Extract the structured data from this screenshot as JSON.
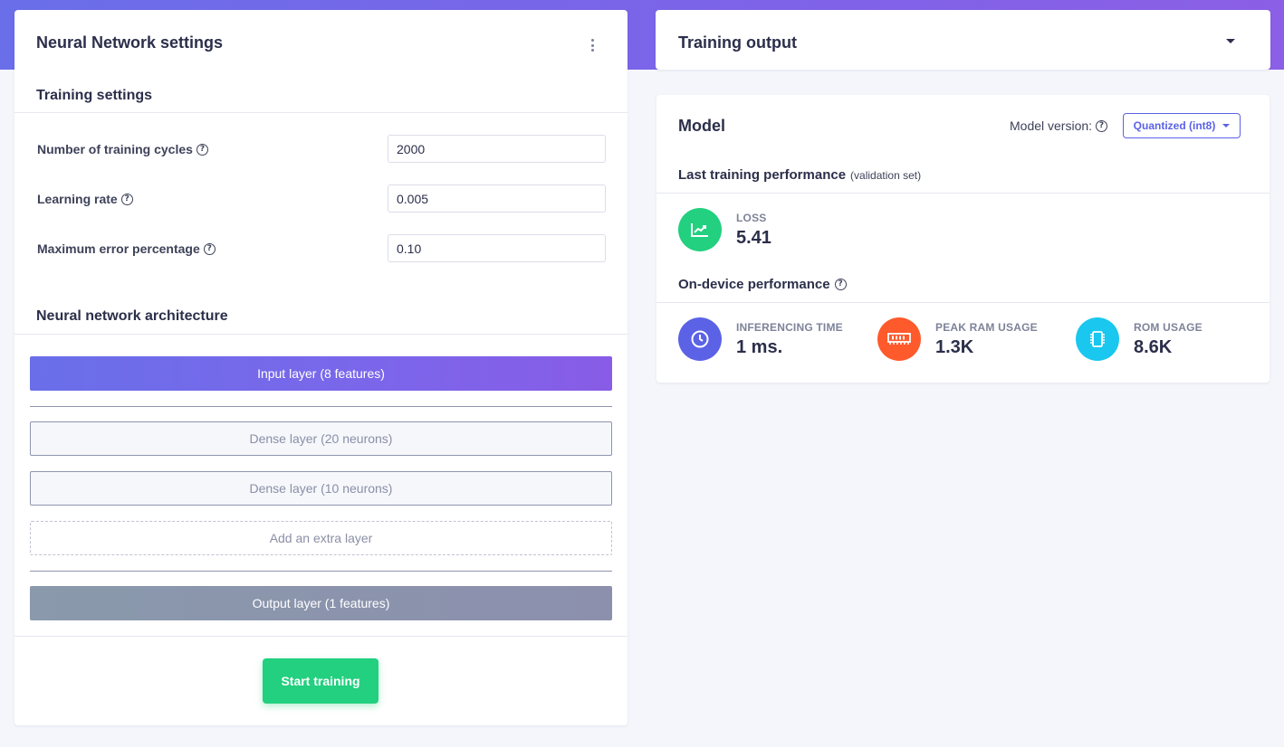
{
  "nn_settings": {
    "title": "Neural Network settings",
    "training_settings_title": "Training settings",
    "fields": [
      {
        "label": "Number of training cycles",
        "value": "2000"
      },
      {
        "label": "Learning rate",
        "value": "0.005"
      },
      {
        "label": "Maximum error percentage",
        "value": "0.10"
      }
    ],
    "architecture_title": "Neural network architecture",
    "layers": {
      "input": "Input layer (8 features)",
      "dense1": "Dense layer (20 neurons)",
      "dense2": "Dense layer (10 neurons)",
      "add": "Add an extra layer",
      "output": "Output layer (1 features)"
    },
    "start_button": "Start training"
  },
  "training_output": {
    "title": "Training output"
  },
  "model": {
    "title": "Model",
    "version_label": "Model version:",
    "version_value": "Quantized (int8)",
    "last_perf_title": "Last training performance",
    "last_perf_sub": "(validation set)",
    "loss_label": "LOSS",
    "loss_value": "5.41",
    "device_perf_title": "On-device performance",
    "metrics": [
      {
        "label": "INFERENCING TIME",
        "value": "1 ms.",
        "icon": "clock-icon",
        "color": "#5b62e6"
      },
      {
        "label": "PEAK RAM USAGE",
        "value": "1.3K",
        "icon": "ram-icon",
        "color": "#ff5a2c"
      },
      {
        "label": "ROM USAGE",
        "value": "8.6K",
        "icon": "chip-icon",
        "color": "#19c7ef"
      }
    ],
    "loss_color": "#22d07f"
  },
  "colors": {
    "accent": "#5b62e6",
    "success": "#22d07f"
  }
}
